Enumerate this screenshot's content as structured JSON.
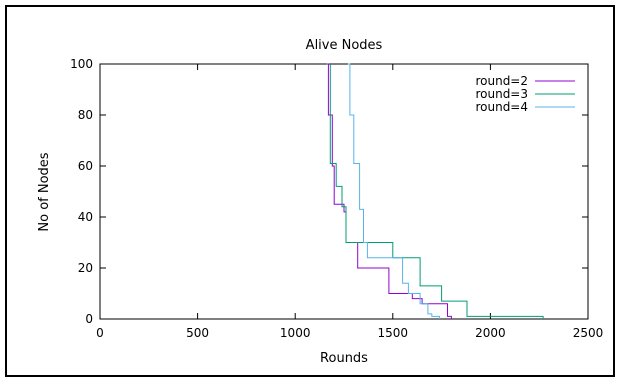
{
  "chart_data": {
    "type": "line",
    "step": true,
    "title": "Alive Nodes",
    "xlabel": "Rounds",
    "ylabel": "No of Nodes",
    "xlim": [
      0,
      2500
    ],
    "ylim": [
      0,
      100
    ],
    "xticks": [
      0,
      500,
      1000,
      1500,
      2000,
      2500
    ],
    "yticks": [
      0,
      20,
      40,
      60,
      80,
      100
    ],
    "grid": false,
    "legend_position": "top-right",
    "series": [
      {
        "name": "round=2",
        "color": "#9400d3",
        "points": [
          [
            1160,
            100
          ],
          [
            1170,
            100
          ],
          [
            1170,
            80
          ],
          [
            1190,
            80
          ],
          [
            1190,
            60
          ],
          [
            1200,
            60
          ],
          [
            1200,
            45
          ],
          [
            1250,
            45
          ],
          [
            1250,
            42
          ],
          [
            1260,
            42
          ],
          [
            1260,
            30
          ],
          [
            1320,
            30
          ],
          [
            1320,
            20
          ],
          [
            1480,
            20
          ],
          [
            1480,
            10
          ],
          [
            1600,
            10
          ],
          [
            1600,
            8
          ],
          [
            1650,
            8
          ],
          [
            1650,
            6
          ],
          [
            1780,
            6
          ],
          [
            1780,
            1
          ],
          [
            1800,
            1
          ],
          [
            1800,
            0
          ]
        ]
      },
      {
        "name": "round=3",
        "color": "#009e73",
        "points": [
          [
            1180,
            100
          ],
          [
            1180,
            61
          ],
          [
            1210,
            61
          ],
          [
            1210,
            52
          ],
          [
            1240,
            52
          ],
          [
            1240,
            44
          ],
          [
            1260,
            44
          ],
          [
            1260,
            30
          ],
          [
            1500,
            30
          ],
          [
            1500,
            24
          ],
          [
            1640,
            24
          ],
          [
            1640,
            13
          ],
          [
            1750,
            13
          ],
          [
            1750,
            7
          ],
          [
            1880,
            7
          ],
          [
            1880,
            1
          ],
          [
            2270,
            1
          ],
          [
            2270,
            0
          ]
        ]
      },
      {
        "name": "round=4",
        "color": "#56b4e9",
        "points": [
          [
            1270,
            100
          ],
          [
            1280,
            100
          ],
          [
            1280,
            80
          ],
          [
            1300,
            80
          ],
          [
            1300,
            61
          ],
          [
            1330,
            61
          ],
          [
            1330,
            43
          ],
          [
            1350,
            43
          ],
          [
            1350,
            30
          ],
          [
            1370,
            30
          ],
          [
            1370,
            24
          ],
          [
            1550,
            24
          ],
          [
            1550,
            14
          ],
          [
            1580,
            14
          ],
          [
            1580,
            10
          ],
          [
            1640,
            10
          ],
          [
            1640,
            6
          ],
          [
            1680,
            6
          ],
          [
            1680,
            2
          ],
          [
            1700,
            2
          ],
          [
            1700,
            1
          ],
          [
            1740,
            1
          ],
          [
            1740,
            0
          ]
        ]
      }
    ]
  }
}
